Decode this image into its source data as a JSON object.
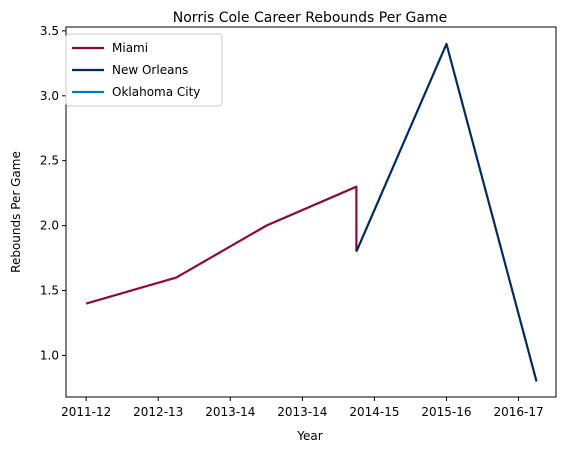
{
  "chart_data": {
    "type": "line",
    "title": "Norris Cole Career Rebounds Per Game",
    "xlabel": "Year",
    "ylabel": "Rebounds Per Game",
    "x_ticks": [
      "2011-12",
      "2012-13",
      "2013-14",
      "2013-14",
      "2014-15",
      "2015-16",
      "2016-17"
    ],
    "ylim": [
      0.68,
      3.53
    ],
    "y_ticks": [
      1.0,
      1.5,
      2.0,
      2.5,
      3.0,
      3.5
    ],
    "y_tick_labels": [
      "1.0",
      "1.5",
      "2.0",
      "2.5",
      "3.0",
      "3.5"
    ],
    "grid": false,
    "legend_position": "top-left",
    "series": [
      {
        "name": "Miami",
        "color": "#8B0A3A",
        "points": [
          {
            "x": 0,
            "y": 1.4
          },
          {
            "x": 1.25,
            "y": 1.6
          },
          {
            "x": 2.5,
            "y": 2.0
          },
          {
            "x": 3.75,
            "y": 2.3
          },
          {
            "x": 3.75,
            "y": 1.8
          }
        ]
      },
      {
        "name": "New Orleans",
        "color": "#002B5C",
        "points": [
          {
            "x": 3.75,
            "y": 1.8
          },
          {
            "x": 5.0,
            "y": 3.4
          },
          {
            "x": 6.25,
            "y": 0.8
          }
        ]
      },
      {
        "name": "Oklahoma City",
        "color": "#007AC1",
        "points": []
      }
    ]
  }
}
